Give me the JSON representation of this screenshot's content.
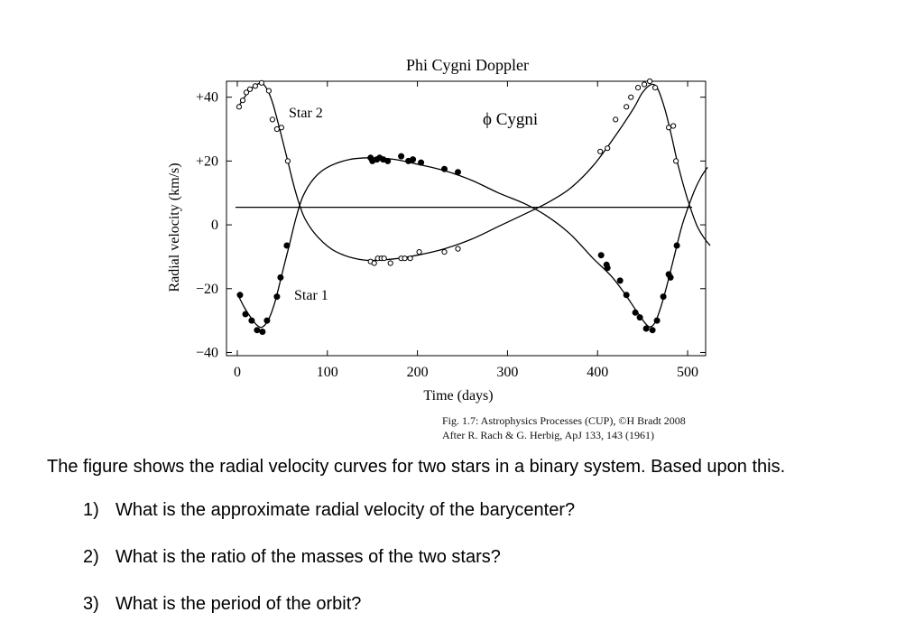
{
  "chart_data": {
    "type": "scatter",
    "title": "Phi Cygni Doppler",
    "xlabel": "Time (days)",
    "ylabel": "Radial velocity (km/s)",
    "xlim": [
      -12,
      520
    ],
    "ylim": [
      -41,
      45
    ],
    "xticks": [
      0,
      100,
      200,
      300,
      400,
      500
    ],
    "xtick_labels": [
      "0",
      "100",
      "200",
      "300",
      "400",
      "500"
    ],
    "yticks": [
      -40,
      -20,
      0,
      20,
      40
    ],
    "ytick_labels": [
      "−40",
      "−20",
      "0",
      "+20",
      "+40"
    ],
    "grid": false,
    "annotations": [
      "Star 2",
      "Star 1",
      "ϕ Cygni"
    ],
    "barycenter_velocity": 5.5,
    "series": [
      {
        "name": "Star 2",
        "marker": "open-circle",
        "points": [
          [
            2,
            37
          ],
          [
            6,
            39
          ],
          [
            10,
            41.5
          ],
          [
            14,
            42.5
          ],
          [
            20,
            43.5
          ],
          [
            27,
            44.5
          ],
          [
            35,
            42
          ],
          [
            39,
            33
          ],
          [
            44,
            30
          ],
          [
            49,
            30.5
          ],
          [
            56,
            20
          ],
          [
            148,
            -11.5
          ],
          [
            152,
            -12
          ],
          [
            156,
            -10.5
          ],
          [
            160,
            -10.5
          ],
          [
            163,
            -10.5
          ],
          [
            170,
            -12
          ],
          [
            182,
            -10.5
          ],
          [
            186,
            -10.5
          ],
          [
            192,
            -10.5
          ],
          [
            202,
            -8.5
          ],
          [
            230,
            -8.5
          ],
          [
            245,
            -7.5
          ],
          [
            403,
            23
          ],
          [
            411,
            24
          ],
          [
            420,
            33
          ],
          [
            432,
            37
          ],
          [
            437,
            40
          ],
          [
            445,
            43
          ],
          [
            452,
            44
          ],
          [
            458,
            45
          ],
          [
            464,
            43
          ],
          [
            479,
            30.5
          ],
          [
            484,
            31
          ],
          [
            487,
            20
          ]
        ],
        "curve": [
          [
            0,
            36.5
          ],
          [
            8,
            40
          ],
          [
            15,
            42.5
          ],
          [
            22,
            44
          ],
          [
            28,
            44.3
          ],
          [
            34,
            42
          ],
          [
            40,
            37.5
          ],
          [
            48,
            29
          ],
          [
            56,
            20
          ],
          [
            65,
            10
          ],
          [
            75,
            2
          ],
          [
            90,
            -4
          ],
          [
            110,
            -8.5
          ],
          [
            140,
            -11
          ],
          [
            170,
            -10.8
          ],
          [
            200,
            -9.5
          ],
          [
            230,
            -7.5
          ],
          [
            260,
            -4.5
          ],
          [
            290,
            -0.5
          ],
          [
            320,
            3.5
          ],
          [
            345,
            7
          ],
          [
            370,
            11.5
          ],
          [
            395,
            18.5
          ],
          [
            420,
            28
          ],
          [
            440,
            36.5
          ],
          [
            450,
            41.5
          ],
          [
            460,
            44
          ],
          [
            467,
            42.5
          ],
          [
            475,
            36
          ],
          [
            482,
            28
          ],
          [
            490,
            18
          ],
          [
            500,
            8
          ],
          [
            510,
            0
          ],
          [
            518,
            -4
          ],
          [
            525,
            -6.5
          ]
        ]
      },
      {
        "name": "Star 1",
        "marker": "filled-circle",
        "points": [
          [
            3,
            -22
          ],
          [
            9,
            -28
          ],
          [
            16,
            -30
          ],
          [
            22,
            -33
          ],
          [
            28,
            -33.5
          ],
          [
            33,
            -30
          ],
          [
            44,
            -22.5
          ],
          [
            48,
            -16.5
          ],
          [
            55,
            -6.5
          ],
          [
            148,
            21
          ],
          [
            150,
            20
          ],
          [
            155,
            20.5
          ],
          [
            158,
            21
          ],
          [
            162,
            20.5
          ],
          [
            167,
            20
          ],
          [
            182,
            21.5
          ],
          [
            190,
            20
          ],
          [
            195,
            20.5
          ],
          [
            204,
            19.5
          ],
          [
            230,
            17.5
          ],
          [
            245,
            16.5
          ],
          [
            404,
            -9.5
          ],
          [
            410,
            -12.5
          ],
          [
            411,
            -13.5
          ],
          [
            425,
            -17.5
          ],
          [
            432,
            -22
          ],
          [
            442,
            -27.5
          ],
          [
            447,
            -29
          ],
          [
            454,
            -32.5
          ],
          [
            461,
            -33
          ],
          [
            466,
            -30
          ],
          [
            473,
            -22.5
          ],
          [
            479,
            -15.5
          ],
          [
            481,
            -16.5
          ],
          [
            488,
            -6.5
          ]
        ],
        "curve": [
          [
            0,
            -21.5
          ],
          [
            8,
            -26
          ],
          [
            15,
            -29
          ],
          [
            22,
            -31.5
          ],
          [
            28,
            -32
          ],
          [
            35,
            -29.5
          ],
          [
            42,
            -24
          ],
          [
            50,
            -15
          ],
          [
            58,
            -6
          ],
          [
            65,
            2
          ],
          [
            73,
            9
          ],
          [
            85,
            14.5
          ],
          [
            100,
            18
          ],
          [
            125,
            20.5
          ],
          [
            150,
            21
          ],
          [
            175,
            20.5
          ],
          [
            200,
            19
          ],
          [
            230,
            17
          ],
          [
            260,
            14
          ],
          [
            290,
            10
          ],
          [
            320,
            6.5
          ],
          [
            345,
            2.5
          ],
          [
            370,
            -3
          ],
          [
            395,
            -10.5
          ],
          [
            415,
            -16
          ],
          [
            430,
            -21.5
          ],
          [
            442,
            -26.5
          ],
          [
            452,
            -30.5
          ],
          [
            458,
            -32
          ],
          [
            464,
            -30.5
          ],
          [
            470,
            -26
          ],
          [
            477,
            -19
          ],
          [
            485,
            -10
          ],
          [
            493,
            -1
          ],
          [
            500,
            5
          ],
          [
            508,
            11
          ],
          [
            515,
            15
          ],
          [
            522,
            18
          ]
        ]
      }
    ]
  },
  "credit": {
    "line1": "Fig. 1.7: Astrophysics Processes (CUP), ©H Bradt 2008",
    "line2": "After R. Rach & G. Herbig, ApJ 133, 143 (1961)"
  },
  "text": {
    "intro": "The figure shows the radial velocity curves for two stars in a binary system. Based upon this.",
    "questions": [
      {
        "num": "1)",
        "text": "What is the approximate radial velocity of the barycenter?"
      },
      {
        "num": "2)",
        "text": "What is the ratio of the masses of the two stars?"
      },
      {
        "num": "3)",
        "text": "What is the period of the orbit?"
      }
    ]
  }
}
